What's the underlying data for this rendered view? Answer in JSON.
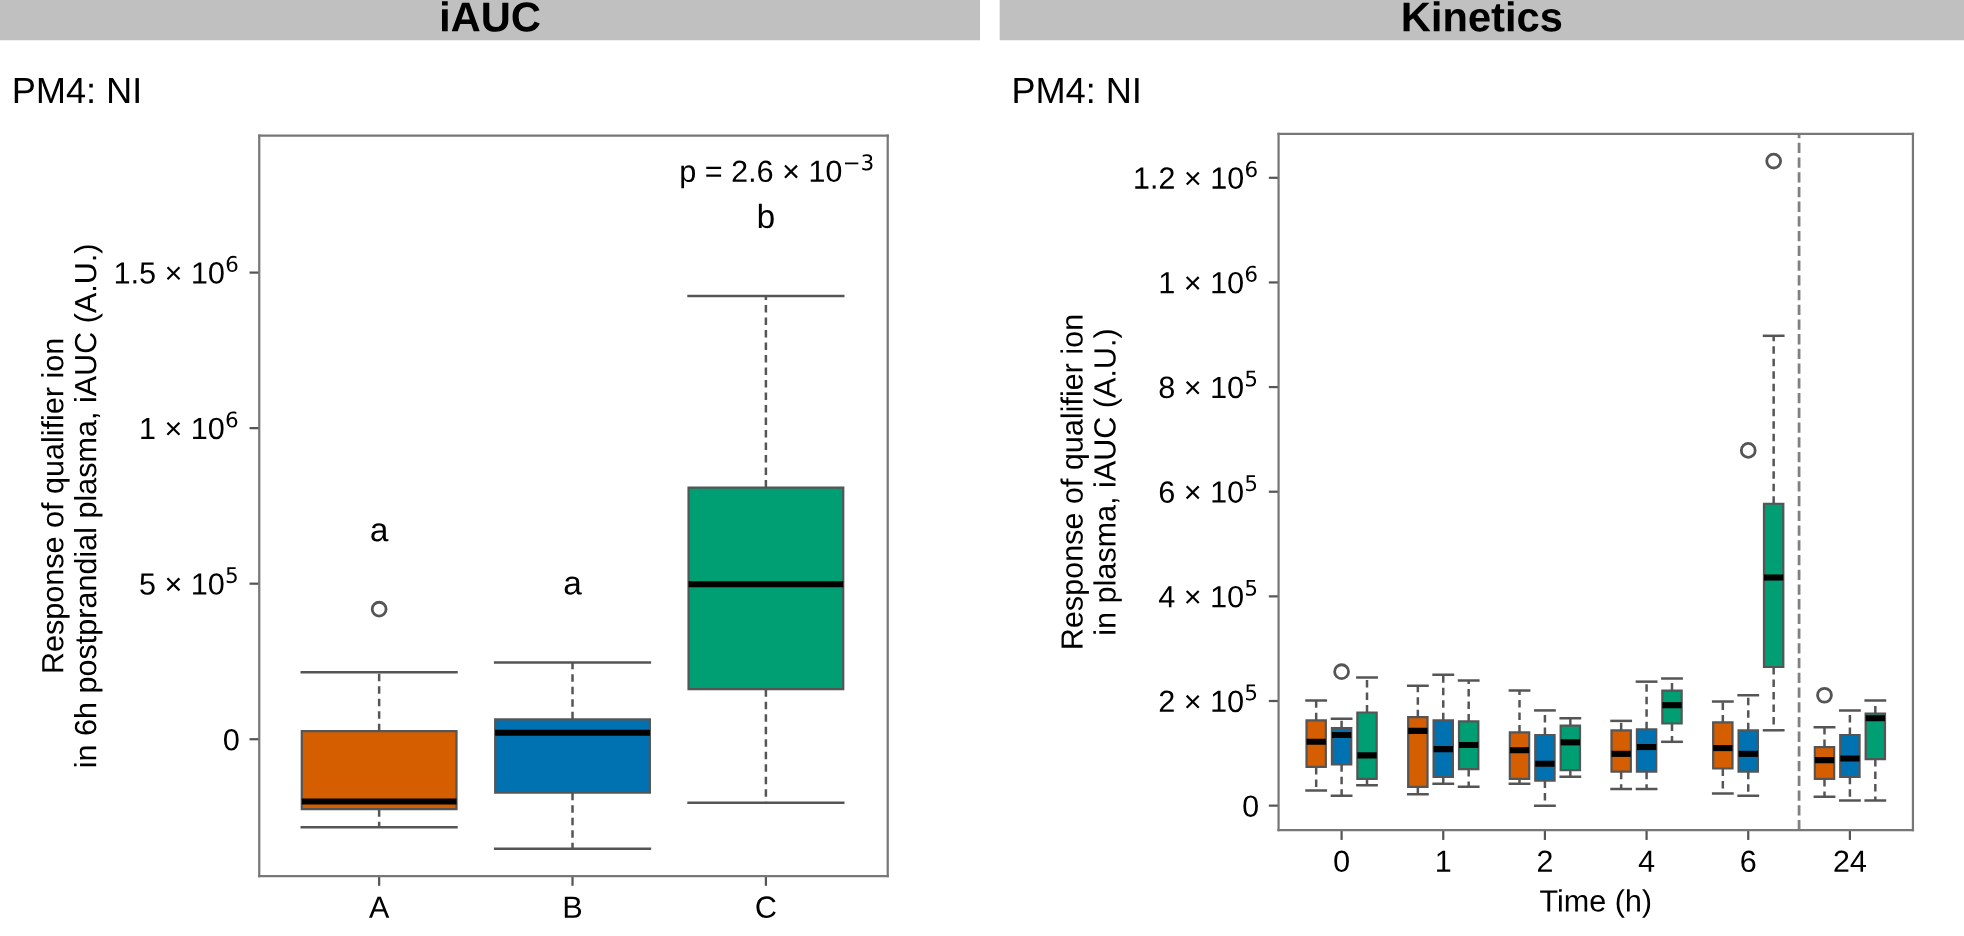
{
  "chart_data": [
    {
      "type": "box",
      "title": "iAUC",
      "subtitle": "PM4: NI",
      "ylabel": "Response of qualifier ion\nin 6h postprandial plasma, iAUC (A.U.)",
      "categories": [
        "A",
        "B",
        "C"
      ],
      "colors": [
        "#d55e00",
        "#0072b2",
        "#009e73"
      ],
      "boxes": [
        {
          "low": -283000,
          "q1": -225000,
          "median": -200000,
          "q3": 26000,
          "high": 215000,
          "outliers": [
            418000
          ]
        },
        {
          "low": -352000,
          "q1": -172000,
          "median": 21000,
          "q3": 64000,
          "high": 247000
        },
        {
          "low": -204000,
          "q1": 161000,
          "median": 498000,
          "q3": 809000,
          "high": 1425000
        }
      ],
      "ylim": [
        -440000,
        1940000
      ],
      "yticks": [
        0,
        {
          "value": 500000,
          "label": "5 × 10$^{5}$"
        },
        {
          "value": 1000000,
          "label": "1 × 10$^{6}$"
        },
        {
          "value": 1500000,
          "label": "1.5 × 10$^{6}$"
        }
      ],
      "grid": false,
      "annotations": [
        "p = 2.6 × 10$^{−3}$",
        "a",
        "a",
        "b"
      ]
    },
    {
      "type": "box",
      "title": "Kinetics",
      "subtitle": "PM4: NI",
      "xlabel": "Time (h)",
      "ylabel": "Response of qualifier ion\nin plasma, iAUC (A.U.)",
      "series": [
        {
          "color": "#d55e00",
          "boxes": [
            {
              "low": 29000,
              "q1": 74000,
              "median": 122000,
              "q3": 163000,
              "high": 201000
            },
            {
              "low": 22000,
              "q1": 36000,
              "median": 143000,
              "q3": 169000,
              "high": 229000
            },
            {
              "low": 42000,
              "q1": 51000,
              "median": 106000,
              "q3": 140000,
              "high": 220000
            },
            {
              "low": 32000,
              "q1": 65000,
              "median": 99000,
              "q3": 144000,
              "high": 162000
            },
            {
              "low": 23000,
              "q1": 71000,
              "median": 110000,
              "q3": 159000,
              "high": 199000
            },
            {
              "low": 17000,
              "q1": 51000,
              "median": 87000,
              "q3": 112000,
              "high": 150000,
              "outliers": [
                211000
              ]
            }
          ]
        },
        {
          "color": "#0072b2",
          "boxes": [
            {
              "low": 19000,
              "q1": 79000,
              "median": 135000,
              "q3": 148000,
              "high": 166000,
              "outliers": [
                256000
              ]
            },
            {
              "low": 42000,
              "q1": 55000,
              "median": 108000,
              "q3": 163000,
              "high": 250000
            },
            {
              "low": 0,
              "q1": 48000,
              "median": 80000,
              "q3": 135000,
              "high": 182000
            },
            {
              "low": 32000,
              "q1": 65000,
              "median": 112000,
              "q3": 146000,
              "high": 237000
            },
            {
              "low": 19000,
              "q1": 65000,
              "median": 99000,
              "q3": 144000,
              "high": 211000,
              "outliers": [
                679000
              ]
            },
            {
              "low": 10000,
              "q1": 55000,
              "median": 90000,
              "q3": 135000,
              "high": 182000
            }
          ]
        },
        {
          "color": "#009e73",
          "boxes": [
            {
              "low": 39000,
              "q1": 51000,
              "median": 96000,
              "q3": 178000,
              "high": 245000
            },
            {
              "low": 36000,
              "q1": 70000,
              "median": 116000,
              "q3": 161000,
              "high": 239000
            },
            {
              "low": 55000,
              "q1": 68000,
              "median": 121000,
              "q3": 153000,
              "high": 167000
            },
            {
              "low": 122000,
              "q1": 157000,
              "median": 192000,
              "q3": 220000,
              "high": 243000
            },
            {
              "low": 144000,
              "q1": 265000,
              "median": 436000,
              "q3": 577000,
              "high": 898000,
              "outliers": [
                1232000
              ]
            },
            {
              "low": 10000,
              "q1": 89000,
              "median": 167000,
              "q3": 176000,
              "high": 201000
            }
          ]
        }
      ],
      "categories": [
        "0",
        "1",
        "2",
        "4",
        "6",
        "24"
      ],
      "ylim": [
        -47000,
        1284000
      ],
      "yticks": [
        0,
        {
          "value": 200000,
          "label": "2 × 10$^{5}$"
        },
        {
          "value": 400000,
          "label": "4 × 10$^{5}$"
        },
        {
          "value": 600000,
          "label": "6 × 10$^{5}$"
        },
        {
          "value": 800000,
          "label": "8 × 10$^{5}$"
        },
        {
          "value": 1000000,
          "label": "1 × 10$^{6}$"
        },
        {
          "value": 1200000,
          "label": "1.2 × 10$^{6}$"
        }
      ],
      "grid": false
    }
  ]
}
